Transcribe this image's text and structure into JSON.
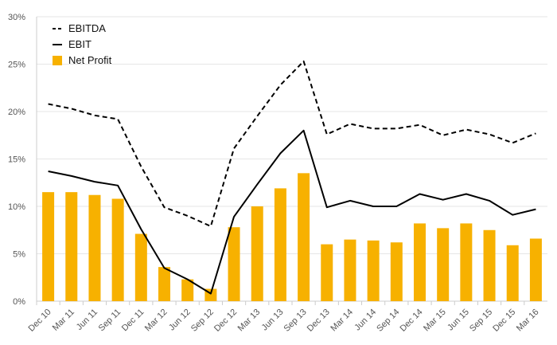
{
  "chart_data": {
    "type": "bar",
    "title": "",
    "xlabel": "",
    "ylabel": "",
    "ylim": [
      0,
      30
    ],
    "yticks": [
      0,
      5,
      10,
      15,
      20,
      25,
      30
    ],
    "ytick_labels": [
      "0%",
      "5%",
      "10%",
      "15%",
      "20%",
      "25%",
      "30%"
    ],
    "grid": "horizontal",
    "legend_position": "top-left",
    "categories": [
      "Dec 10",
      "Mar 11",
      "Jun 11",
      "Sep 11",
      "Dec 11",
      "Mar 12",
      "Jun 12",
      "Sep 12",
      "Dec 12",
      "Mar 13",
      "Jun 13",
      "Sep 13",
      "Dec 13",
      "Mar 14",
      "Jun 14",
      "Sep 14",
      "Dec 14",
      "Mar 15",
      "Jun 15",
      "Sep 15",
      "Dec 15",
      "Mar 16"
    ],
    "series": [
      {
        "name": "EBITDA",
        "kind": "line",
        "style": "dashed",
        "color": "#000000",
        "values": [
          20.8,
          20.3,
          19.6,
          19.2,
          14.2,
          9.9,
          9.0,
          7.9,
          16.1,
          19.5,
          22.8,
          25.3,
          17.6,
          18.7,
          18.2,
          18.2,
          18.6,
          17.5,
          18.1,
          17.6,
          16.7,
          17.7
        ]
      },
      {
        "name": "EBIT",
        "kind": "line",
        "style": "solid",
        "color": "#000000",
        "values": [
          13.7,
          13.2,
          12.6,
          12.2,
          7.6,
          3.5,
          2.3,
          0.8,
          8.9,
          12.3,
          15.6,
          18.0,
          9.9,
          10.6,
          10.0,
          10.0,
          11.3,
          10.7,
          11.3,
          10.6,
          9.1,
          9.7
        ]
      },
      {
        "name": "Net Profit",
        "kind": "bar",
        "color": "#f7b100",
        "values": [
          11.5,
          11.5,
          11.2,
          10.8,
          7.1,
          3.6,
          2.3,
          1.3,
          7.8,
          10.0,
          11.9,
          13.5,
          6.0,
          6.5,
          6.4,
          6.2,
          8.2,
          7.7,
          8.2,
          7.5,
          5.9,
          6.6
        ]
      }
    ]
  }
}
